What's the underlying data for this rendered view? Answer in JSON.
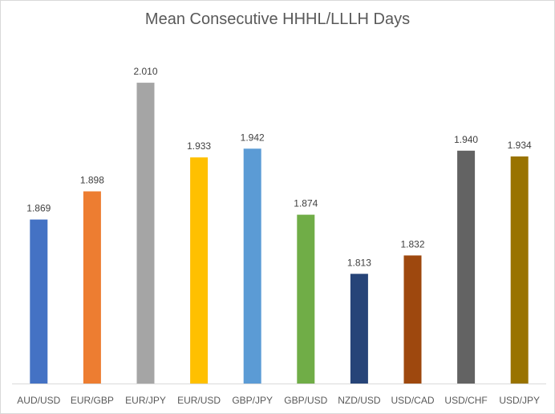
{
  "chart_data": {
    "type": "bar",
    "title": "Mean Consecutive HHHL/LLLH Days",
    "xlabel": "",
    "ylabel": "",
    "categories": [
      "AUD/USD",
      "EUR/GBP",
      "EUR/JPY",
      "EUR/USD",
      "GBP/JPY",
      "GBP/USD",
      "NZD/USD",
      "USD/CAD",
      "USD/CHF",
      "USD/JPY"
    ],
    "values": [
      1.869,
      1.898,
      2.01,
      1.933,
      1.942,
      1.874,
      1.813,
      1.832,
      1.94,
      1.934
    ],
    "data_labels": [
      "1.869",
      "1.898",
      "2.010",
      "1.933",
      "1.942",
      "1.874",
      "1.813",
      "1.832",
      "1.940",
      "1.934"
    ],
    "ylim": [
      1.7,
      2.02
    ],
    "grid": false,
    "legend": "none",
    "bar_colors": [
      "#4472C4",
      "#ED7D31",
      "#A5A5A5",
      "#FFC000",
      "#5B9BD5",
      "#70AD47",
      "#264478",
      "#9E480E",
      "#636363",
      "#997300"
    ]
  }
}
